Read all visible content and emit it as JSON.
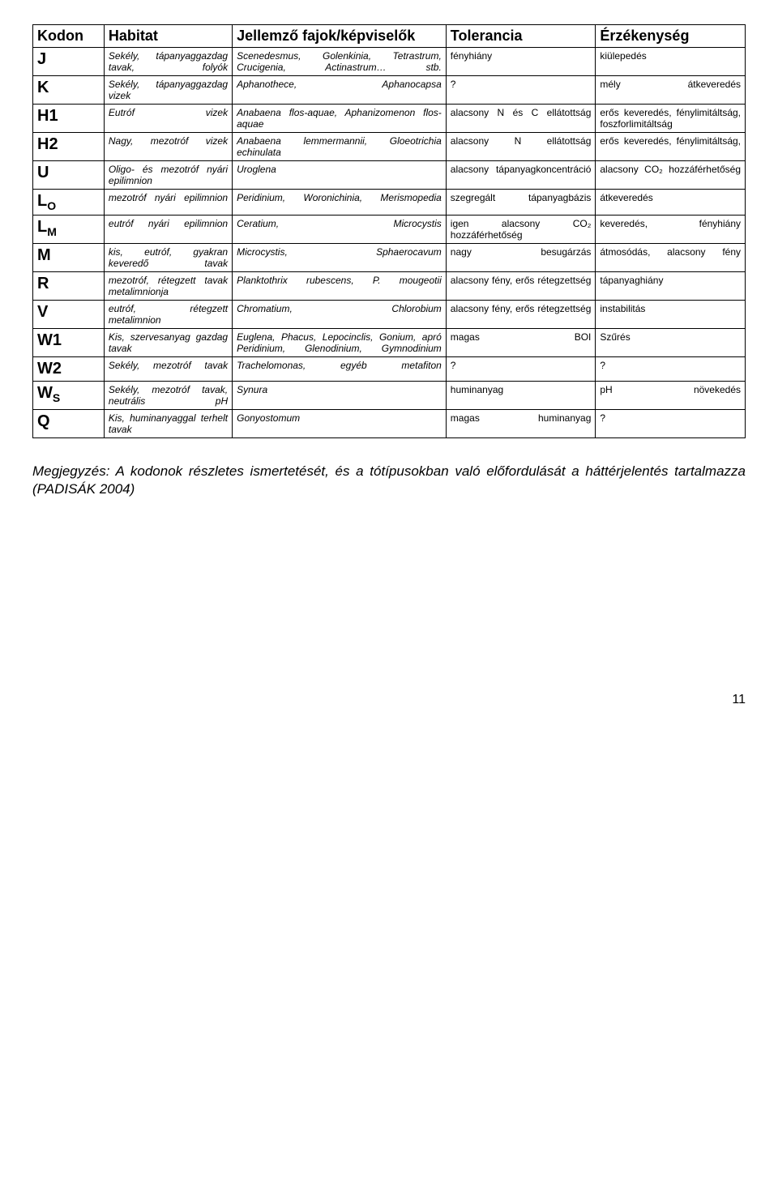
{
  "headers": {
    "kodon": "Kodon",
    "habitat": "Habitat",
    "faj": "Jellemző fajok/képviselők",
    "tol": "Tolerancia",
    "erz": "Érzékenység"
  },
  "rows": [
    {
      "kodon": "J",
      "habitat": "Sekély, tápanyaggazdag tavak, folyók",
      "faj": "Scenedesmus, Golenkinia, Tetrastrum, Crucigenia, Actinastrum… stb.",
      "tol": "fényhiány",
      "erz": "kiülepedés"
    },
    {
      "kodon": "K",
      "habitat": "Sekély, tápanyaggazdag vizek",
      "faj": "Aphanothece, Aphanocapsa",
      "tol": "?",
      "erz": "mély átkeveredés"
    },
    {
      "kodon": "H1",
      "habitat": "Eutróf vizek",
      "faj": "Anabaena flos-aquae, Aphanizomenon flos-aquae",
      "tol": "alacsony N és C ellátottság",
      "erz": "erős keveredés, fénylimitáltság, foszforlimitáltság"
    },
    {
      "kodon": "H2",
      "habitat": "Nagy, mezotróf vizek",
      "faj": "Anabaena lemmermannii, Gloeotrichia echinulata",
      "tol": "alacsony N ellátottság",
      "erz": "erős keveredés, fénylimitáltság,"
    },
    {
      "kodon": "U",
      "habitat": "Oligo- és mezotróf nyári epilimnion",
      "faj": "Uroglena",
      "tol": "alacsony tápanyagkoncentráció",
      "erz": "alacsony CO₂ hozzáférhetőség"
    },
    {
      "kodon": "L<sub>O</sub>",
      "habitat": "mezotróf nyári epilimnion",
      "faj": "Peridinium, Woronichinia, Merismopedia",
      "tol": "szegregált tápanyagbázis",
      "erz": "átkeveredés"
    },
    {
      "kodon": "L<sub>M</sub>",
      "habitat": "eutróf nyári epilimnion",
      "faj": "Ceratium, Microcystis",
      "tol": "igen alacsony CO₂ hozzáférhetőség",
      "erz": "keveredés, fényhiány"
    },
    {
      "kodon": "M",
      "habitat": "kis, eutróf, gyakran keveredő tavak",
      "faj": "Microcystis, Sphaerocavum",
      "tol": "nagy besugárzás",
      "erz": "átmosódás, alacsony fény"
    },
    {
      "kodon": "R",
      "habitat": "mezotróf, rétegzett tavak metalimnionja",
      "faj": "Planktothrix rubescens, P. mougeotii",
      "tol": "alacsony fény, erős rétegzettség",
      "erz": "tápanyaghiány"
    },
    {
      "kodon": "V",
      "habitat": "eutróf, rétegzett metalimnion",
      "faj": "Chromatium, Chlorobium",
      "tol": "alacsony fény, erős rétegzettség",
      "erz": "instabilitás"
    },
    {
      "kodon": "W1",
      "habitat": "Kis, szervesanyag gazdag tavak",
      "faj": "Euglena, Phacus, Lepocinclis, Gonium, apró Peridinium, Glenodinium, Gymnodinium",
      "tol": "magas BOI",
      "erz": "Szűrés"
    },
    {
      "kodon": "W2",
      "habitat": "Sekély, mezotróf tavak",
      "faj": "Trachelomonas, egyéb metafiton",
      "tol": "?",
      "erz": "?"
    },
    {
      "kodon": "W<sub>S</sub>",
      "habitat": "Sekély, mezotróf tavak, neutrális pH",
      "faj": "Synura",
      "tol": "huminanyag",
      "erz": "pH növekedés"
    },
    {
      "kodon": "Q",
      "habitat": "Kis, huminanyaggal terhelt tavak",
      "faj": "Gonyostomum",
      "tol": "magas huminanyag",
      "erz": "?"
    }
  ],
  "note": "Megjegyzés: A kodonok részletes ismertetését, és a tótípusokban való előfordulását a háttérjelentés tartalmazza (PADISÁK 2004)",
  "page_number": "11"
}
